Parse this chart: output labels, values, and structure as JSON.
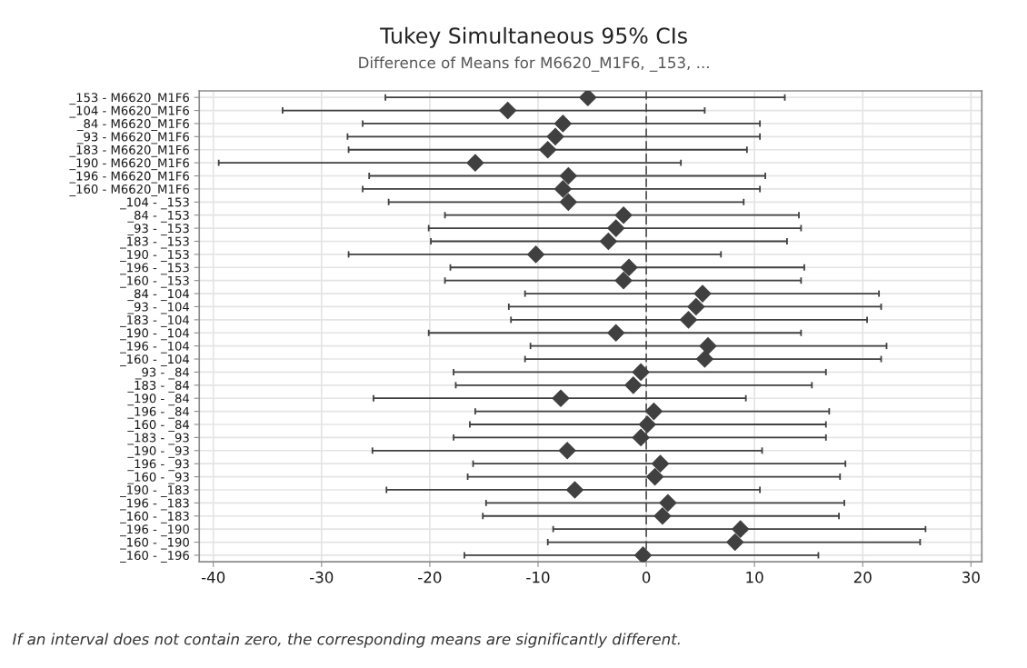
{
  "chart_data": {
    "type": "scatter",
    "orientation": "horizontal",
    "title": "Tukey Simultaneous 95% CIs",
    "subtitle": "Difference of Means for M6620_M1F6, _153, ...",
    "categories": [
      "_153 - M6620_M1F6",
      "_104 - M6620_M1F6",
      "_84 - M6620_M1F6",
      "_93 - M6620_M1F6",
      "_183 - M6620_M1F6",
      "_190 - M6620_M1F6",
      "_196 - M6620_M1F6",
      "_160 - M6620_M1F6",
      "_104 - _153",
      "_84 - _153",
      "_93 - _153",
      "_183 - _153",
      "_190 - _153",
      "_196 - _153",
      "_160 - _153",
      "_84 - _104",
      "_93 - _104",
      "_183 - _104",
      "_190 - _104",
      "_196 - _104",
      "_160 - _104",
      "_93 - _84",
      "_183 - _84",
      "_190 - _84",
      "_196 - _84",
      "_160 - _84",
      "_183 - _93",
      "_190 - _93",
      "_196 - _93",
      "_160 - _93",
      "_190 - _183",
      "_196 - _183",
      "_160 - _183",
      "_196 - _190",
      "_160 - _190",
      "_160 - _196"
    ],
    "values": [
      -5.4,
      -12.8,
      -7.7,
      -8.4,
      -9.1,
      -15.8,
      -7.2,
      -7.7,
      -7.2,
      -2.1,
      -2.8,
      -3.5,
      -10.2,
      -1.6,
      -2.1,
      5.2,
      4.6,
      3.9,
      -2.8,
      5.7,
      5.4,
      -0.5,
      -1.2,
      -7.9,
      0.7,
      0.1,
      -0.5,
      -7.3,
      1.3,
      0.8,
      -6.6,
      2.0,
      1.5,
      8.7,
      8.2,
      -0.3
    ],
    "errors": [
      [
        -24.1,
        12.8
      ],
      [
        -33.6,
        5.4
      ],
      [
        -26.2,
        10.5
      ],
      [
        -27.6,
        10.5
      ],
      [
        -27.5,
        9.3
      ],
      [
        -39.5,
        3.2
      ],
      [
        -25.6,
        11.0
      ],
      [
        -26.2,
        10.5
      ],
      [
        -23.8,
        9.0
      ],
      [
        -18.6,
        14.1
      ],
      [
        -20.1,
        14.3
      ],
      [
        -19.9,
        13.0
      ],
      [
        -27.5,
        6.9
      ],
      [
        -18.1,
        14.6
      ],
      [
        -18.6,
        14.3
      ],
      [
        -11.2,
        21.5
      ],
      [
        -12.7,
        21.7
      ],
      [
        -12.5,
        20.4
      ],
      [
        -20.1,
        14.3
      ],
      [
        -10.7,
        22.2
      ],
      [
        -11.2,
        21.7
      ],
      [
        -17.8,
        16.6
      ],
      [
        -17.6,
        15.3
      ],
      [
        -25.2,
        9.2
      ],
      [
        -15.8,
        16.9
      ],
      [
        -16.3,
        16.6
      ],
      [
        -17.8,
        16.6
      ],
      [
        -25.3,
        10.7
      ],
      [
        -16.0,
        18.4
      ],
      [
        -16.5,
        17.9
      ],
      [
        -24.0,
        10.5
      ],
      [
        -14.8,
        18.3
      ],
      [
        -15.1,
        17.8
      ],
      [
        -8.6,
        25.8
      ],
      [
        -9.1,
        25.3
      ],
      [
        -16.8,
        15.9
      ]
    ],
    "color": "#404040",
    "marker": "diamond",
    "xlim": [
      -41.3,
      31.0
    ],
    "xticks": [
      -40,
      -30,
      -20,
      -10,
      0,
      10,
      20,
      30
    ],
    "grid": true,
    "ref_lines": [
      {
        "axis": "x",
        "value": 0,
        "line_style": "dashed",
        "color": "#404040"
      }
    ],
    "annotations": [
      "If an interval does not contain zero, the corresponding means are significantly different."
    ]
  }
}
